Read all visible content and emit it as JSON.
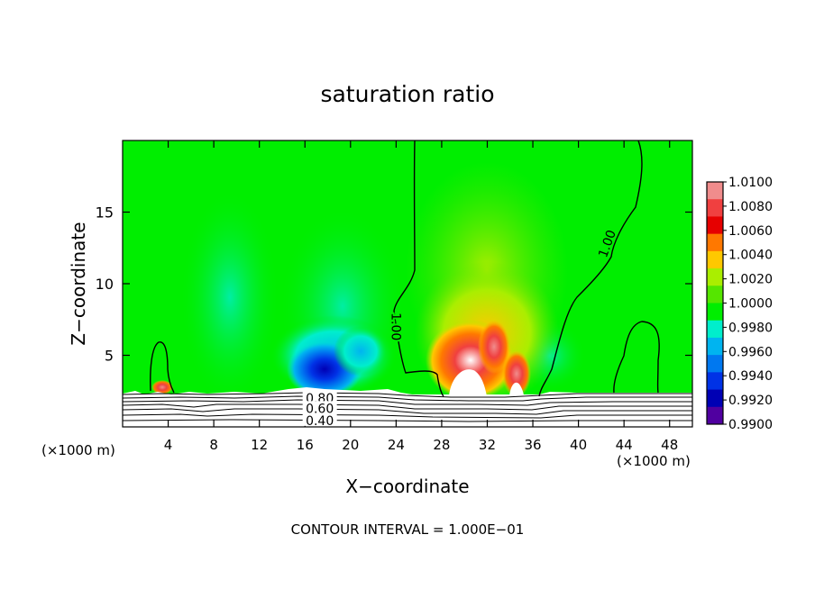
{
  "chart_data": {
    "type": "heatmap",
    "title": "saturation ratio",
    "xlabel": "X−coordinate",
    "ylabel": "Z−coordinate",
    "x_unit_left": "(×1000 m)",
    "x_unit_right": "(×1000 m)",
    "footer": "CONTOUR INTERVAL = 1.000E−01",
    "xlim": [
      0,
      50
    ],
    "ylim": [
      0,
      20
    ],
    "x_ticks": [
      {
        "value": 4,
        "label": "4"
      },
      {
        "value": 8,
        "label": "8"
      },
      {
        "value": 12,
        "label": "12"
      },
      {
        "value": 16,
        "label": "16"
      },
      {
        "value": 20,
        "label": "20"
      },
      {
        "value": 24,
        "label": "24"
      },
      {
        "value": 28,
        "label": "28"
      },
      {
        "value": 32,
        "label": "32"
      },
      {
        "value": 36,
        "label": "36"
      },
      {
        "value": 40,
        "label": "40"
      },
      {
        "value": 44,
        "label": "44"
      },
      {
        "value": 48,
        "label": "48"
      }
    ],
    "y_ticks": [
      {
        "value": 5,
        "label": "5"
      },
      {
        "value": 10,
        "label": "10"
      },
      {
        "value": 15,
        "label": "15"
      }
    ],
    "colorbar": {
      "levels": [
        "1.0100",
        "1.0080",
        "1.0060",
        "1.0040",
        "1.0020",
        "1.0000",
        "0.9980",
        "0.9960",
        "0.9940",
        "0.9920",
        "0.9900"
      ],
      "colors": [
        "#f08c8c",
        "#f04040",
        "#e60000",
        "#ff7800",
        "#ffc800",
        "#aaee00",
        "#55e600",
        "#00ee00",
        "#00eecc",
        "#00b4f0",
        "#0078f0",
        "#0032e6",
        "#0000b4",
        "#5000a0"
      ]
    },
    "contour_labels": [
      {
        "text": "1.00",
        "x": 24,
        "y": 7.0,
        "rotate": 90
      },
      {
        "text": "1.00",
        "x": 42.5,
        "y": 12.8,
        "rotate": -70
      },
      {
        "text": "0.80",
        "x": 17.3,
        "y": 2.0,
        "rotate": 0
      },
      {
        "text": "0.60",
        "x": 17.3,
        "y": 1.3,
        "rotate": 0
      },
      {
        "text": "0.40",
        "x": 17.3,
        "y": 0.45,
        "rotate": 0
      }
    ],
    "features": [
      {
        "x": 30.5,
        "y": 4.0,
        "value": 1.0085
      },
      {
        "x": 32.5,
        "y": 5.5,
        "value": 1.0075
      },
      {
        "x": 34.5,
        "y": 4.0,
        "value": 1.0068
      },
      {
        "x": 31.0,
        "y": 7.5,
        "value": 1.0035
      },
      {
        "x": 32.0,
        "y": 11.0,
        "value": 1.0015
      },
      {
        "x": 17.5,
        "y": 3.5,
        "value": 0.9925
      },
      {
        "x": 19.0,
        "y": 5.5,
        "value": 0.9965
      },
      {
        "x": 21.5,
        "y": 6.5,
        "value": 0.9975
      },
      {
        "x": 3.5,
        "y": 2.8,
        "value": 1.0065
      }
    ]
  }
}
